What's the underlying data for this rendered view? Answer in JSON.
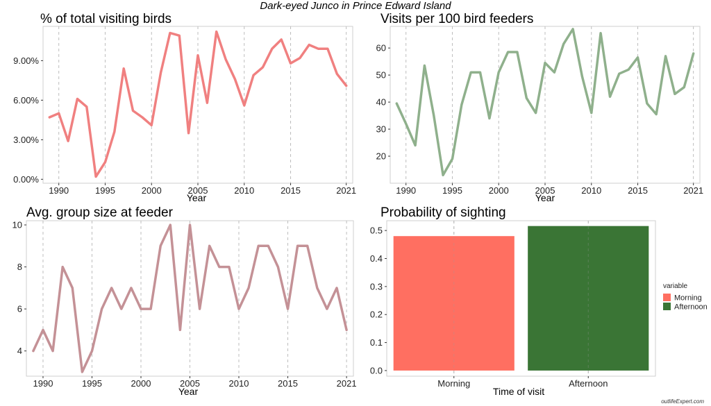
{
  "suptitle": "Dark-eyed Junco in Prince Edward Island",
  "watermark": "outlifeExpert.com",
  "colors": {
    "pct": "#F08080",
    "visits": "#8FB08C",
    "group": "#C49196",
    "morning": "#FF6F61",
    "afternoon": "#3A7535",
    "grid": "#bdbdbd",
    "frame": "#cfcfcf"
  },
  "chart_data": [
    {
      "id": "pct",
      "type": "line",
      "title": "% of total visiting birds",
      "xlabel": "Year",
      "ylabel": "",
      "xlim": [
        1988.3,
        2021.7
      ],
      "ylim": [
        -0.3,
        11.6
      ],
      "xticks": [
        1990,
        1995,
        2000,
        2005,
        2010,
        2015,
        2021
      ],
      "yticks": [
        0,
        3,
        6,
        9
      ],
      "ytick_labels": [
        "0.00%",
        "3.00%",
        "6.00%",
        "9.00%"
      ],
      "grid": "vertical-dashed",
      "x": [
        1989,
        1990,
        1991,
        1992,
        1993,
        1994,
        1995,
        1996,
        1997,
        1998,
        1999,
        2000,
        2001,
        2002,
        2003,
        2004,
        2005,
        2006,
        2007,
        2008,
        2009,
        2010,
        2011,
        2012,
        2013,
        2014,
        2015,
        2016,
        2017,
        2018,
        2019,
        2020,
        2021
      ],
      "y": [
        4.7,
        5.0,
        2.9,
        6.1,
        5.5,
        0.2,
        1.3,
        3.6,
        8.4,
        5.2,
        4.7,
        4.1,
        8.1,
        11.1,
        10.9,
        3.5,
        9.4,
        5.8,
        11.2,
        9.1,
        7.6,
        5.6,
        7.9,
        8.5,
        9.9,
        10.6,
        8.8,
        9.2,
        10.2,
        9.9,
        9.9,
        8.0,
        7.1
      ]
    },
    {
      "id": "visits",
      "type": "line",
      "title": "Visits per 100 bird feeders",
      "xlabel": "Year",
      "ylabel": "",
      "xlim": [
        1988.3,
        2021.7
      ],
      "ylim": [
        10,
        68
      ],
      "xticks": [
        1990,
        1995,
        2000,
        2005,
        2010,
        2015,
        2021
      ],
      "yticks": [
        20,
        30,
        40,
        50,
        60
      ],
      "ytick_labels": [
        "20",
        "30",
        "40",
        "50",
        "60"
      ],
      "grid": "vertical-dashed",
      "x": [
        1989,
        1990,
        1991,
        1992,
        1993,
        1994,
        1995,
        1996,
        1997,
        1998,
        1999,
        2000,
        2001,
        2002,
        2003,
        2004,
        2005,
        2006,
        2007,
        2008,
        2009,
        2010,
        2011,
        2012,
        2013,
        2014,
        2015,
        2016,
        2017,
        2018,
        2019,
        2020,
        2021
      ],
      "y": [
        39.5,
        32,
        24,
        53.5,
        35,
        13,
        19,
        39,
        51,
        51,
        34,
        51,
        58.5,
        58.5,
        41.5,
        36,
        54.5,
        51,
        61.5,
        67,
        49.5,
        36,
        65.5,
        42,
        50.5,
        52,
        56.5,
        39.5,
        35.5,
        57,
        43,
        45.5,
        58
      ]
    },
    {
      "id": "group",
      "type": "line",
      "title": "Avg. group size at feeder",
      "xlabel": "Year",
      "ylabel": "",
      "xlim": [
        1988.3,
        2021.7
      ],
      "ylim": [
        2.8,
        10.2
      ],
      "xticks": [
        1990,
        1995,
        2000,
        2005,
        2010,
        2015,
        2021
      ],
      "yticks": [
        4,
        6,
        8,
        10
      ],
      "ytick_labels": [
        "4",
        "6",
        "8",
        "10"
      ],
      "grid": "vertical-dashed",
      "x": [
        1989,
        1990,
        1991,
        1992,
        1993,
        1994,
        1995,
        1996,
        1997,
        1998,
        1999,
        2000,
        2001,
        2002,
        2003,
        2004,
        2005,
        2006,
        2007,
        2008,
        2009,
        2010,
        2011,
        2012,
        2013,
        2014,
        2015,
        2016,
        2017,
        2018,
        2019,
        2020,
        2021
      ],
      "y": [
        4,
        5,
        4,
        8,
        7,
        3,
        4,
        6,
        7,
        6,
        7,
        6,
        6,
        9,
        10,
        5,
        10,
        6,
        9,
        8,
        8,
        6,
        7,
        9,
        9,
        8,
        6,
        9,
        9,
        7,
        6,
        7,
        5
      ]
    },
    {
      "id": "prob",
      "type": "bar",
      "title": "Probability of sighting",
      "xlabel": "Time of visit",
      "ylabel": "",
      "ylim": [
        -0.02,
        0.535
      ],
      "yticks": [
        0.0,
        0.1,
        0.2,
        0.3,
        0.4,
        0.5
      ],
      "ytick_labels": [
        "0.0",
        "0.1",
        "0.2",
        "0.3",
        "0.4",
        "0.5"
      ],
      "categories": [
        "Morning",
        "Afternoon"
      ],
      "values": [
        0.48,
        0.516
      ],
      "legend": {
        "title": "variable",
        "position": "right",
        "items": [
          "Morning",
          "Afternoon"
        ]
      }
    }
  ]
}
